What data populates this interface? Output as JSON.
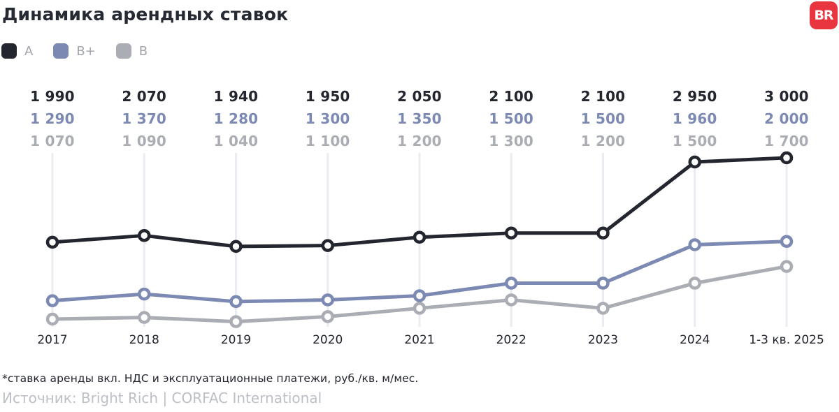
{
  "header": {
    "title": "Динамика арендных ставок",
    "logo_text": "BR"
  },
  "colors": {
    "logo_bg": "#E8353F",
    "logo_text": "#FFFFFF",
    "title_text": "#262A33",
    "grid_line": "#EBECF2",
    "axis_label": "#23262F",
    "legend_label": "#A2A5AC",
    "footnote_text": "#23262F",
    "source_text": "#BCBFC5"
  },
  "chart_data": {
    "type": "line",
    "title": "Динамика арендных ставок",
    "categories": [
      "2017",
      "2018",
      "2019",
      "2020",
      "2021",
      "2022",
      "2023",
      "2024",
      "1-3 кв. 2025"
    ],
    "series": [
      {
        "name": "A",
        "color": "#23262F",
        "values": [
          1990,
          2070,
          1940,
          1950,
          2050,
          2100,
          2100,
          2950,
          3000
        ],
        "labels": [
          "1 990",
          "2 070",
          "1 940",
          "1 950",
          "2 050",
          "2 100",
          "2 100",
          "2 950",
          "3 000"
        ]
      },
      {
        "name": "B+",
        "color": "#7C89B2",
        "values": [
          1290,
          1370,
          1280,
          1300,
          1350,
          1500,
          1500,
          1960,
          2000
        ],
        "labels": [
          "1 290",
          "1 370",
          "1 280",
          "1 300",
          "1 350",
          "1 500",
          "1 500",
          "1 960",
          "2 000"
        ]
      },
      {
        "name": "B",
        "color": "#ABADB4",
        "values": [
          1070,
          1090,
          1040,
          1100,
          1200,
          1300,
          1200,
          1500,
          1700
        ],
        "labels": [
          "1 070",
          "1 090",
          "1 040",
          "1 100",
          "1 200",
          "1 300",
          "1 200",
          "1 500",
          "1 700"
        ]
      }
    ],
    "value_range": [
      1040,
      3000
    ],
    "grid": "vertical-ticks-per-category",
    "legend_position": "top-left",
    "point_style": "hollow-circle",
    "xlabel": "",
    "ylabel": "руб./кв. м/мес."
  },
  "footer": {
    "note": "*ставка аренды вкл. НДС и эксплуатационные платежи, руб./кв. м/мес.",
    "source": "Источник: Bright Rich | CORFAC International"
  }
}
